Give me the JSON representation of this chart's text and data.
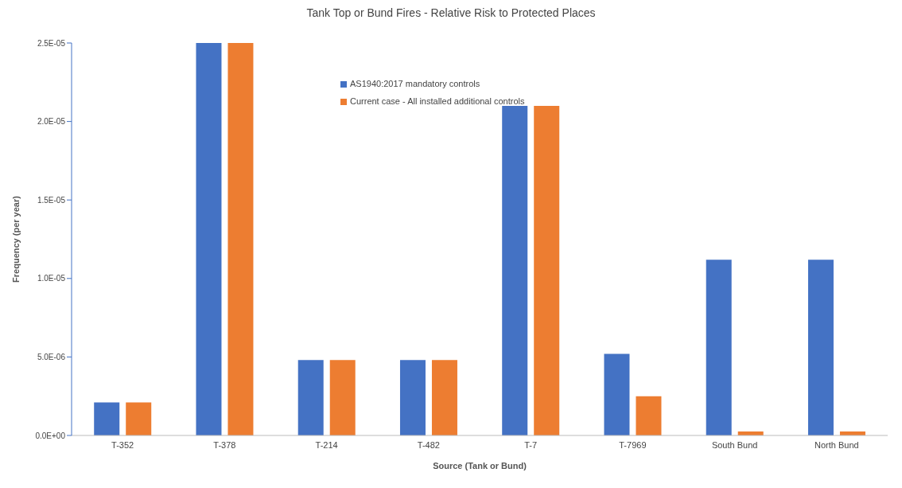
{
  "chart_data": {
    "type": "bar",
    "title": "Tank Top or Bund Fires - Relative Risk to Protected Places",
    "xlabel": "Source (Tank or Bund)",
    "ylabel": "Frequency (per year)",
    "categories": [
      "T-352",
      "T-378",
      "T-214",
      "T-482",
      "T-7",
      "T-7969",
      "South Bund",
      "North Bund"
    ],
    "series": [
      {
        "name": "AS1940:2017 mandatory controls",
        "color": "#4472c4",
        "values": [
          2.1e-06,
          2.5e-05,
          4.8e-06,
          4.8e-06,
          2.1e-05,
          5.2e-06,
          1.12e-05,
          1.12e-05
        ]
      },
      {
        "name": "Current case - All installed additional controls",
        "color": "#ed7d31",
        "values": [
          2.1e-06,
          2.5e-05,
          4.8e-06,
          4.8e-06,
          2.1e-05,
          2.5e-06,
          2.5e-07,
          2.5e-07
        ]
      }
    ],
    "ylim": [
      0,
      2.5e-05
    ],
    "yticks": [
      {
        "value": 0,
        "label": "0.0E+00"
      },
      {
        "value": 5e-06,
        "label": "5.0E-06"
      },
      {
        "value": 1e-05,
        "label": "1.0E-05"
      },
      {
        "value": 1.5e-05,
        "label": "1.5E-05"
      },
      {
        "value": 2e-05,
        "label": "2.0E-05"
      },
      {
        "value": 2.5e-05,
        "label": "2.5E-05"
      }
    ],
    "grid": false,
    "legend": "top"
  }
}
